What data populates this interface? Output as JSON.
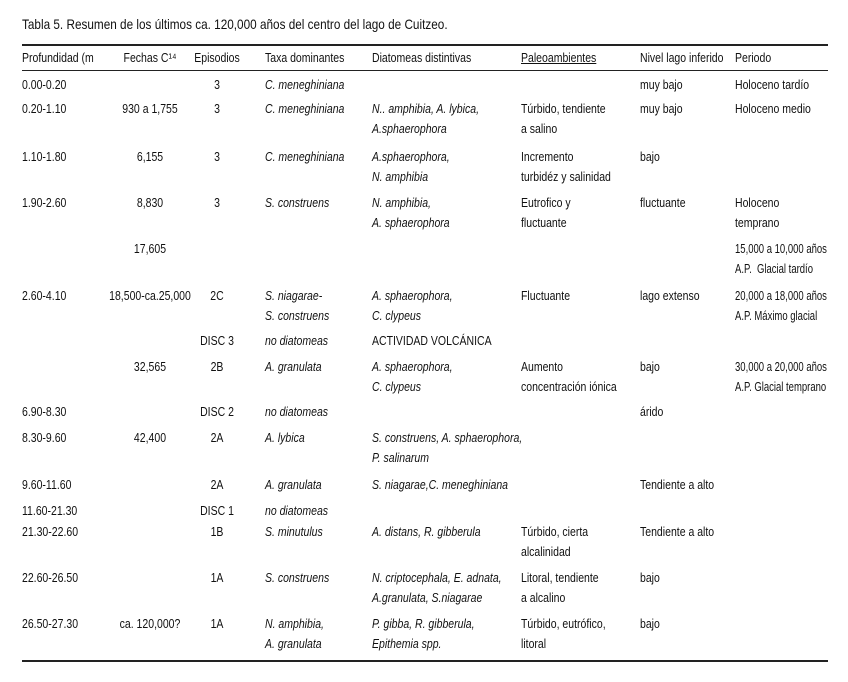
{
  "title": "Tabla 5. Resumen de los últimos ca. 120,000 años del centro del lago de Cuitzeo.",
  "table": {
    "header": [
      "Profundidad (m",
      "Fechas C¹⁴",
      "Episodios",
      "Taxa dominantes",
      "Diatomeas distintivas",
      "Paleoambientes",
      "Nivel lago inferido",
      "Periodo"
    ],
    "rows": [
      [
        "0.00-0.20",
        null,
        "3",
        "C. meneghiniana",
        null,
        null,
        "muy bajo",
        "Holoceno tardío"
      ],
      [
        "0.20-1.10",
        "930 a 1,755",
        "3",
        "C. meneghiniana",
        "N.. amphibia, A. lybica,\nA.sphaerophora",
        "Túrbido, tendiente\na salino",
        "muy bajo",
        "Holoceno medio"
      ],
      [
        "1.10-1.80",
        "6,155",
        "3",
        "C. meneghiniana",
        "A.sphaerophora,\nN. amphibia",
        "Incremento\nturbidéz y salinidad",
        "bajo",
        null
      ],
      [
        "1.90-2.60",
        "8,830",
        "3",
        "S. construens",
        "N. amphibia,\nA. sphaerophora",
        "Eutrofico y\nfluctuante",
        "fluctuante",
        "Holoceno\ntemprano"
      ],
      [
        null,
        "17,605",
        null,
        null,
        null,
        null,
        null,
        "15,000 a 10,000 años\nA.P.  Glacial tardío"
      ],
      [
        "2.60-4.10",
        "18,500-ca.25,000",
        "2C",
        "S. niagarae-\nS. construens",
        "A. sphaerophora,\nC. clypeus",
        "Fluctuante",
        "lago extenso",
        "20,000 a 18,000 años\nA.P. Máximo glacial"
      ],
      [
        null,
        null,
        "DISC 3",
        "no diatomeas",
        "ACTIVIDAD VOLCÁNICA",
        null,
        null,
        null
      ],
      [
        null,
        "32,565",
        "2B",
        "A. granulata",
        "A. sphaerophora,\nC. clypeus",
        "Aumento\nconcentración iónica",
        "bajo",
        "30,000 a 20,000 años\nA.P. Glacial temprano"
      ],
      [
        "6.90-8.30",
        null,
        "DISC 2",
        "no diatomeas",
        null,
        null,
        "árido",
        null
      ],
      [
        "8.30-9.60",
        "42,400",
        "2A",
        "A. lybica",
        "S. construens, A. sphaerophora,\nP. salinarum",
        null,
        null,
        null
      ],
      [
        "9.60-11.60",
        null,
        "2A",
        "A. granulata",
        "S. niagarae,C. meneghiniana",
        null,
        "Tendiente a alto",
        null
      ],
      [
        "11.60-21.30",
        null,
        "DISC 1",
        "no diatomeas",
        null,
        null,
        null,
        null
      ],
      [
        "21.30-22.60",
        null,
        "1B",
        "S. minutulus",
        "A. distans, R. gibberula",
        "Túrbido, cierta\nalcalinidad",
        "Tendiente a alto",
        null
      ],
      [
        "22.60-26.50",
        null,
        "1A",
        "S. construens",
        "N. criptocephala, E. adnata,\nA.granulata, S.niagarae",
        "Litoral, tendiente\na alcalino",
        "bajo",
        null
      ],
      [
        "26.50-27.30",
        "ca. 120,000?",
        "1A",
        "N. amphibia,\nA. granulata",
        "P. gibba, R. gibberula,\nEpithemia spp.",
        "Túrbido, eutrófico,\nlitoral",
        "bajo",
        null
      ]
    ]
  }
}
